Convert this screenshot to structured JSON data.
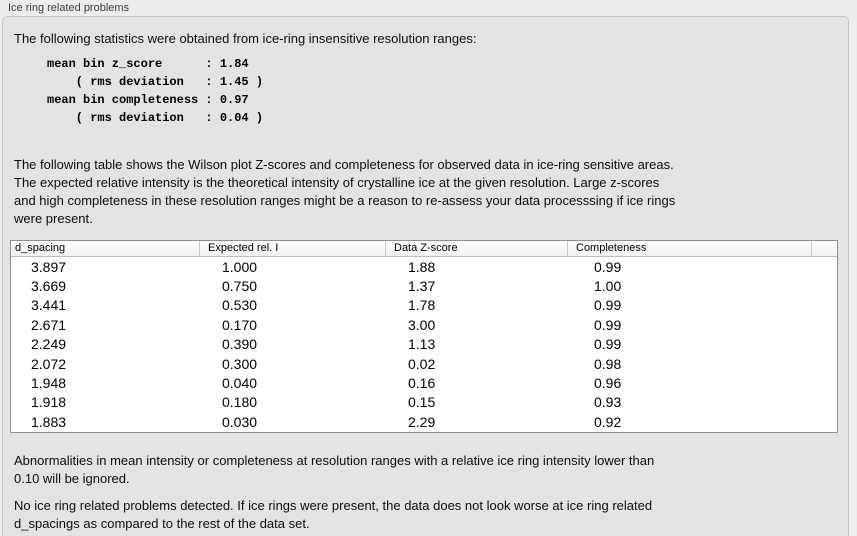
{
  "panel": {
    "title": "Ice ring related problems"
  },
  "intro": "The following statistics were obtained from ice-ring insensitive resolution ranges:",
  "stats": {
    "lines": "mean bin z_score      : 1.84\n    ( rms deviation   : 1.45 )\nmean bin completeness : 0.97\n    ( rms deviation   : 0.04 )"
  },
  "description": "The following table shows the Wilson plot Z-scores and completeness for observed data in ice-ring sensitive areas.\nThe expected relative intensity is the theoretical intensity of crystalline ice at the given resolution. Large z-scores\nand high completeness in these resolution ranges might be a reason to re-assess your data processsing if ice rings\nwere present.",
  "table": {
    "columns": [
      "d_spacing",
      "Expected rel. I",
      "Data Z-score",
      "Completeness",
      ""
    ],
    "rows": [
      [
        "3.897",
        "1.000",
        "1.88",
        "0.99"
      ],
      [
        "3.669",
        "0.750",
        "1.37",
        "1.00"
      ],
      [
        "3.441",
        "0.530",
        "1.78",
        "0.99"
      ],
      [
        "2.671",
        "0.170",
        "3.00",
        "0.99"
      ],
      [
        "2.249",
        "0.390",
        "1.13",
        "0.99"
      ],
      [
        "2.072",
        "0.300",
        "0.02",
        "0.98"
      ],
      [
        "1.948",
        "0.040",
        "0.16",
        "0.96"
      ],
      [
        "1.918",
        "0.180",
        "0.15",
        "0.93"
      ],
      [
        "1.883",
        "0.030",
        "2.29",
        "0.92"
      ]
    ]
  },
  "note_ignore": "Abnormalities in mean intensity or completeness at resolution ranges with a relative ice ring intensity lower than\n0.10 will be ignored.",
  "note_result": "No ice ring related problems detected. If ice rings were present, the data does not look worse at ice ring related\nd_spacings as compared to the rest of the data set.",
  "colors": {
    "outer_bg": "#ededed",
    "panel_bg": "#e3e3e3",
    "table_border": "#8f8f8f"
  }
}
